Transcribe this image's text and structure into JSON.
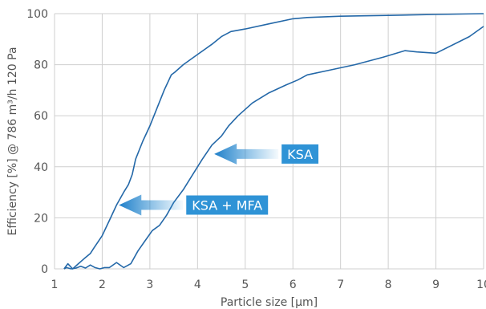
{
  "chart_data": {
    "type": "line",
    "xlabel": "Particle size [µm]",
    "ylabel": "Efficiency [%] @ 786 m³/h 120 Pa",
    "xlim": [
      1,
      10
    ],
    "ylim": [
      0,
      100
    ],
    "xticks": [
      "1",
      "2",
      "3",
      "4",
      "5",
      "6",
      "7",
      "8",
      "9",
      "10"
    ],
    "yticks": [
      "0",
      "20",
      "40",
      "60",
      "80",
      "100"
    ],
    "grid": true,
    "series": [
      {
        "x": [
          1.2,
          1.28,
          1.38,
          1.5,
          1.62,
          1.75,
          1.82,
          2.0,
          2.15,
          2.3,
          2.45,
          2.55,
          2.63,
          2.7,
          2.85,
          3.0,
          3.15,
          3.3,
          3.45,
          3.52,
          3.7,
          4.0,
          4.3,
          4.5,
          4.7,
          5.0,
          5.5,
          6.0,
          6.3,
          7.0,
          8.0,
          9.0,
          10.0
        ],
        "y": [
          0,
          2,
          0,
          2,
          4,
          6,
          8,
          13,
          19,
          25,
          30,
          33,
          37,
          43,
          50,
          56,
          63,
          70,
          76,
          77,
          80,
          84,
          88,
          91,
          93,
          94,
          96,
          98,
          98.5,
          99,
          99.3,
          99.7,
          100
        ]
      },
      {
        "x": [
          1.2,
          1.25,
          1.35,
          1.45,
          1.55,
          1.65,
          1.75,
          1.85,
          1.95,
          2.05,
          2.15,
          2.3,
          2.45,
          2.6,
          2.75,
          2.9,
          3.05,
          3.2,
          3.35,
          3.5,
          3.7,
          3.9,
          4.1,
          4.3,
          4.5,
          4.65,
          4.85,
          5.15,
          5.5,
          5.85,
          6.1,
          6.3,
          6.8,
          7.3,
          7.9,
          8.35,
          8.6,
          9.0,
          9.7,
          10.0
        ],
        "y": [
          0,
          0.5,
          0,
          0.3,
          1,
          0.3,
          1.5,
          0.5,
          0,
          0.5,
          0.5,
          2.5,
          0.5,
          2,
          7,
          11,
          15,
          17,
          21,
          26,
          31,
          37,
          43,
          48.5,
          52,
          56,
          60,
          65,
          69,
          72,
          74,
          76,
          78,
          80,
          83,
          85.5,
          85,
          84.5,
          91,
          95
        ]
      }
    ],
    "annotations": [
      {
        "text": "KSA",
        "target_x": 4.35,
        "target_y": 45
      },
      {
        "text": "KSA + MFA",
        "target_x": 2.35,
        "target_y": 25
      }
    ]
  }
}
